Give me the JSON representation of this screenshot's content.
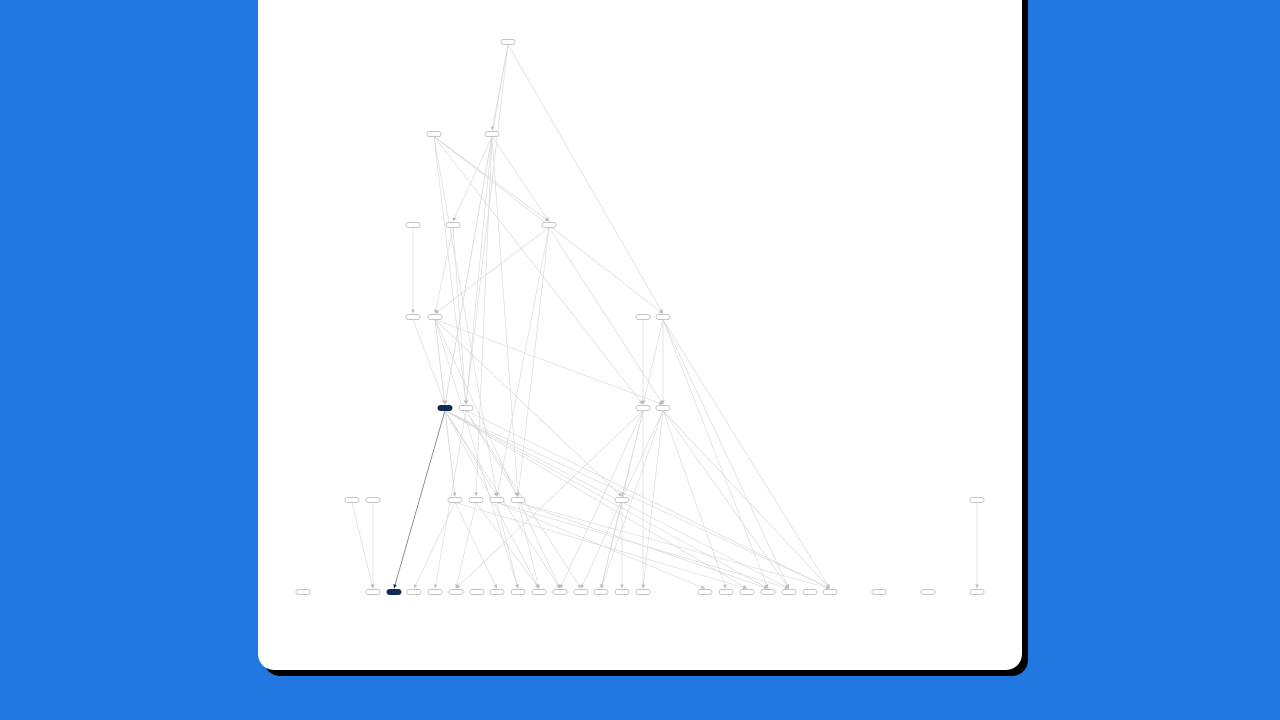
{
  "background_color": "#1f77df",
  "card_color": "#ffffff",
  "highlight_color": "#0d2d57",
  "graph": {
    "layers": 7,
    "node_labels_visible": false,
    "nodes": [
      {
        "id": "a0",
        "layer": 0
      },
      {
        "id": "b0",
        "layer": 1
      },
      {
        "id": "b1",
        "layer": 1
      },
      {
        "id": "c0",
        "layer": 2
      },
      {
        "id": "c1",
        "layer": 2
      },
      {
        "id": "c2",
        "layer": 2
      },
      {
        "id": "d0",
        "layer": 3
      },
      {
        "id": "d1",
        "layer": 3
      },
      {
        "id": "d2",
        "layer": 3
      },
      {
        "id": "d3",
        "layer": 3
      },
      {
        "id": "e0",
        "layer": 4,
        "highlighted": true
      },
      {
        "id": "e1",
        "layer": 4
      },
      {
        "id": "e2",
        "layer": 4
      },
      {
        "id": "e3",
        "layer": 4
      },
      {
        "id": "f0",
        "layer": 5
      },
      {
        "id": "f1",
        "layer": 5
      },
      {
        "id": "f2",
        "layer": 5
      },
      {
        "id": "f3",
        "layer": 5
      },
      {
        "id": "f4",
        "layer": 5
      },
      {
        "id": "f5",
        "layer": 5
      },
      {
        "id": "f6",
        "layer": 5
      },
      {
        "id": "f7",
        "layer": 5
      },
      {
        "id": "g0",
        "layer": 6
      },
      {
        "id": "g1",
        "layer": 6
      },
      {
        "id": "g2",
        "layer": 6,
        "highlighted": true
      },
      {
        "id": "g3",
        "layer": 6
      },
      {
        "id": "g4",
        "layer": 6
      },
      {
        "id": "g5",
        "layer": 6
      },
      {
        "id": "g6",
        "layer": 6
      },
      {
        "id": "g7",
        "layer": 6
      },
      {
        "id": "g8",
        "layer": 6
      },
      {
        "id": "g9",
        "layer": 6
      },
      {
        "id": "g10",
        "layer": 6
      },
      {
        "id": "g11",
        "layer": 6
      },
      {
        "id": "g12",
        "layer": 6
      },
      {
        "id": "g13",
        "layer": 6
      },
      {
        "id": "g14",
        "layer": 6
      },
      {
        "id": "g15",
        "layer": 6
      },
      {
        "id": "g16",
        "layer": 6
      },
      {
        "id": "g17",
        "layer": 6
      },
      {
        "id": "g18",
        "layer": 6
      },
      {
        "id": "g19",
        "layer": 6
      },
      {
        "id": "g20",
        "layer": 6
      },
      {
        "id": "g21",
        "layer": 6
      },
      {
        "id": "g22",
        "layer": 6
      },
      {
        "id": "g23",
        "layer": 6
      },
      {
        "id": "g24",
        "layer": 6
      }
    ],
    "edges": [
      [
        "a0",
        "b1"
      ],
      [
        "a0",
        "e1"
      ],
      [
        "a0",
        "d3"
      ],
      [
        "a0",
        "e0"
      ],
      [
        "b0",
        "c2"
      ],
      [
        "b0",
        "e1"
      ],
      [
        "b0",
        "d3"
      ],
      [
        "b0",
        "f2"
      ],
      [
        "b0",
        "e2"
      ],
      [
        "b1",
        "c1"
      ],
      [
        "b1",
        "e0"
      ],
      [
        "b1",
        "e1"
      ],
      [
        "b1",
        "f1"
      ],
      [
        "b1",
        "f3"
      ],
      [
        "b1",
        "c2"
      ],
      [
        "c0",
        "d0"
      ],
      [
        "c1",
        "d1"
      ],
      [
        "c1",
        "e1"
      ],
      [
        "c2",
        "d1"
      ],
      [
        "c2",
        "e3"
      ],
      [
        "c2",
        "f3"
      ],
      [
        "c2",
        "f2"
      ],
      [
        "d0",
        "e0"
      ],
      [
        "d1",
        "e0"
      ],
      [
        "d1",
        "f0"
      ],
      [
        "d1",
        "g10"
      ],
      [
        "d1",
        "e3"
      ],
      [
        "d1",
        "f4"
      ],
      [
        "d1",
        "g8"
      ],
      [
        "d2",
        "e2"
      ],
      [
        "d3",
        "e2"
      ],
      [
        "d3",
        "e3"
      ],
      [
        "d3",
        "g18"
      ],
      [
        "d3",
        "g19"
      ],
      [
        "d3",
        "g20"
      ],
      [
        "e0",
        "g2"
      ],
      [
        "e0",
        "f0"
      ],
      [
        "e0",
        "f2"
      ],
      [
        "e0",
        "g9"
      ],
      [
        "e0",
        "g10"
      ],
      [
        "e0",
        "g17"
      ],
      [
        "e0",
        "g18"
      ],
      [
        "e0",
        "g19"
      ],
      [
        "e0",
        "g20"
      ],
      [
        "e1",
        "g4"
      ],
      [
        "e1",
        "f3"
      ],
      [
        "e1",
        "g11"
      ],
      [
        "e1",
        "g20"
      ],
      [
        "e2",
        "f4"
      ],
      [
        "e2",
        "g10"
      ],
      [
        "e2",
        "g12"
      ],
      [
        "e2",
        "g14"
      ],
      [
        "e2",
        "g5"
      ],
      [
        "e3",
        "g12"
      ],
      [
        "e3",
        "g14"
      ],
      [
        "e3",
        "g16"
      ],
      [
        "e3",
        "g19"
      ],
      [
        "e3",
        "g20"
      ],
      [
        "e3",
        "g11"
      ],
      [
        "f0",
        "g3"
      ],
      [
        "f0",
        "g7"
      ],
      [
        "f0",
        "g17"
      ],
      [
        "f1",
        "g5"
      ],
      [
        "f1",
        "g9"
      ],
      [
        "f2",
        "g8"
      ],
      [
        "f2",
        "g15"
      ],
      [
        "f2",
        "g19"
      ],
      [
        "f3",
        "g9"
      ],
      [
        "f3",
        "g18"
      ],
      [
        "f3",
        "g20"
      ],
      [
        "f4",
        "g12"
      ],
      [
        "f4",
        "g13"
      ],
      [
        "f5",
        "g1"
      ],
      [
        "f6",
        "g1"
      ],
      [
        "f7",
        "g24"
      ]
    ]
  }
}
